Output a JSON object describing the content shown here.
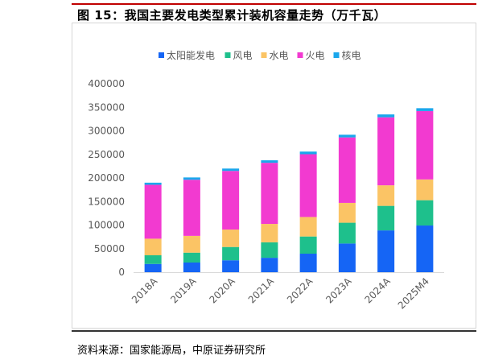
{
  "figure": {
    "title": "图 15：我国主要发电类型累计装机容量走势（万千瓦）",
    "source": "资料来源：国家能源局，中原证券研究所"
  },
  "chart_data": {
    "type": "bar",
    "stacked": true,
    "categories": [
      "2018A",
      "2019A",
      "2020A",
      "2021A",
      "2022A",
      "2023A",
      "2024A",
      "2025M4"
    ],
    "series": [
      {
        "name": "太阳能发电",
        "color": "#1565f5",
        "values": [
          17500,
          20500,
          25300,
          30600,
          39300,
          60900,
          88700,
          99100
        ]
      },
      {
        "name": "风电",
        "color": "#1ec08c",
        "values": [
          18400,
          21000,
          28200,
          32800,
          36500,
          44100,
          52100,
          53700
        ]
      },
      {
        "name": "水电",
        "color": "#fbc465",
        "values": [
          35200,
          35600,
          37000,
          39100,
          41400,
          42100,
          43600,
          44100
        ]
      },
      {
        "name": "火电",
        "color": "#f23ad0",
        "values": [
          114400,
          119100,
          124500,
          129700,
          133200,
          139000,
          144400,
          145100
        ]
      },
      {
        "name": "核电",
        "color": "#1aa7ec",
        "values": [
          4500,
          4900,
          5000,
          5300,
          5600,
          5700,
          6100,
          6100
        ]
      }
    ],
    "ylim": [
      0,
      400000
    ],
    "yticks": [
      0,
      50000,
      100000,
      150000,
      200000,
      250000,
      300000,
      350000,
      400000
    ],
    "grid": false,
    "legend_position": "top"
  }
}
